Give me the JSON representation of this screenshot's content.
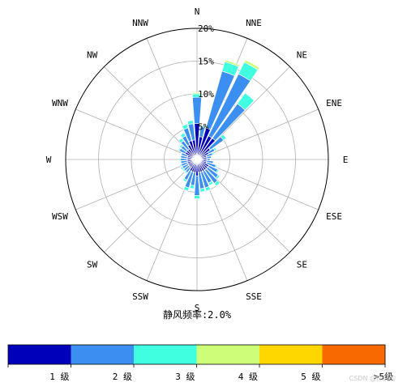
{
  "chart_data": {
    "type": "windrose",
    "directions": [
      "N",
      "NNE",
      "NE",
      "ENE",
      "E",
      "ESE",
      "SE",
      "SSE",
      "S",
      "SSW",
      "SW",
      "WSW",
      "W",
      "WNW",
      "NW",
      "NNW"
    ],
    "ring_values": [
      5,
      10,
      15,
      20
    ],
    "ring_labels": [
      "5%",
      "10%",
      "15%",
      "20%"
    ],
    "rmax": 20,
    "grid": true,
    "calm_text": "静风频率:2.0%",
    "class_labels": [
      "1 级",
      "2 级",
      "3 级",
      "4 级",
      "5 级",
      ">5级"
    ],
    "class_colors": [
      "#0000bb",
      "#3b8ff0",
      "#40ffe0",
      "#ccff77",
      "#ffd700",
      "#f86a00"
    ],
    "sector_count": 36,
    "sector_directions_deg": [
      0,
      10,
      20,
      30,
      40,
      50,
      60,
      70,
      80,
      90,
      100,
      110,
      120,
      130,
      140,
      150,
      160,
      170,
      180,
      190,
      200,
      210,
      220,
      230,
      240,
      250,
      260,
      270,
      280,
      290,
      300,
      310,
      320,
      330,
      340,
      350
    ],
    "sector_cumulative_pct": [
      [
        5.5,
        9.5,
        10.0,
        10.2,
        10.2,
        10.2
      ],
      [
        3.5,
        5.0,
        5.2,
        5.2,
        5.2,
        5.2
      ],
      [
        5.0,
        14.0,
        15.5,
        15.8,
        15.8,
        15.8
      ],
      [
        4.0,
        14.5,
        16.5,
        16.9,
        16.9,
        16.9
      ],
      [
        4.0,
        10.5,
        12.5,
        12.5,
        12.5,
        12.5
      ],
      [
        2.5,
        5.0,
        5.5,
        5.5,
        5.5,
        5.5
      ],
      [
        2.0,
        3.0,
        3.3,
        3.3,
        3.3,
        3.3
      ],
      [
        1.5,
        2.5,
        2.7,
        2.7,
        2.7,
        2.7
      ],
      [
        1.5,
        2.2,
        2.3,
        2.3,
        2.3,
        2.3
      ],
      [
        1.5,
        2.0,
        2.1,
        2.1,
        2.1,
        2.1
      ],
      [
        1.5,
        2.5,
        2.6,
        2.6,
        2.6,
        2.6
      ],
      [
        1.5,
        3.0,
        3.2,
        3.2,
        3.2,
        3.2
      ],
      [
        2.0,
        3.5,
        3.7,
        3.7,
        3.7,
        3.7
      ],
      [
        2.0,
        4.0,
        4.3,
        4.3,
        4.3,
        4.3
      ],
      [
        2.0,
        4.5,
        5.0,
        5.0,
        5.0,
        5.0
      ],
      [
        2.0,
        4.0,
        4.4,
        4.4,
        4.4,
        4.4
      ],
      [
        2.0,
        4.5,
        5.0,
        5.0,
        5.0,
        5.0
      ],
      [
        2.0,
        4.5,
        5.0,
        5.0,
        5.0,
        5.0
      ],
      [
        2.5,
        5.5,
        6.0,
        6.0,
        6.0,
        6.0
      ],
      [
        2.0,
        4.0,
        4.5,
        4.5,
        4.5,
        4.5
      ],
      [
        2.0,
        4.5,
        5.0,
        5.0,
        5.0,
        5.0
      ],
      [
        2.0,
        3.5,
        3.8,
        3.8,
        3.8,
        3.8
      ],
      [
        1.5,
        2.5,
        2.7,
        2.7,
        2.7,
        2.7
      ],
      [
        1.5,
        2.5,
        2.7,
        2.7,
        2.7,
        2.7
      ],
      [
        1.5,
        2.5,
        2.8,
        2.8,
        2.8,
        2.8
      ],
      [
        1.5,
        2.5,
        2.7,
        2.7,
        2.7,
        2.7
      ],
      [
        1.5,
        2.5,
        2.6,
        2.6,
        2.6,
        2.6
      ],
      [
        1.5,
        2.5,
        2.7,
        2.7,
        2.7,
        2.7
      ],
      [
        1.5,
        2.5,
        2.6,
        2.6,
        2.6,
        2.6
      ],
      [
        1.5,
        2.5,
        2.6,
        2.6,
        2.6,
        2.6
      ],
      [
        2.0,
        3.0,
        3.2,
        3.2,
        3.2,
        3.2
      ],
      [
        2.0,
        3.0,
        3.3,
        3.3,
        3.3,
        3.3
      ],
      [
        2.0,
        3.5,
        4.0,
        4.0,
        4.0,
        4.0
      ],
      [
        2.5,
        4.0,
        4.5,
        4.5,
        4.5,
        4.5
      ],
      [
        3.0,
        5.0,
        5.6,
        5.6,
        5.6,
        5.6
      ],
      [
        3.0,
        5.5,
        6.0,
        6.0,
        6.0,
        6.0
      ]
    ]
  },
  "watermark": "CSDN @你们的"
}
